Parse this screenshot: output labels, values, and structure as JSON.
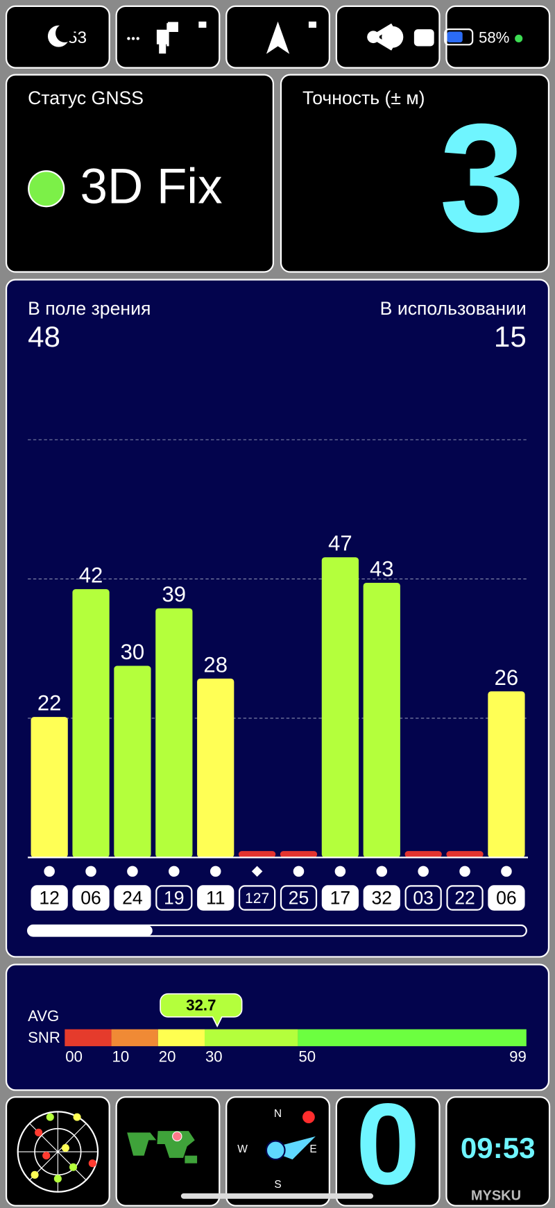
{
  "status_bar": {
    "time": ":53",
    "battery": "58%"
  },
  "gnss_status": {
    "label": "Статус GNSS",
    "value": "3D Fix"
  },
  "accuracy": {
    "label": "Точность (± м)",
    "value": "3"
  },
  "in_view": {
    "label": "В поле зрения",
    "value": "48"
  },
  "in_use": {
    "label": "В использовании",
    "value": "15"
  },
  "chart_data": {
    "type": "bar",
    "categories": [
      "12",
      "06",
      "24",
      "19",
      "11",
      "127",
      "25",
      "17",
      "32",
      "03",
      "22",
      "06"
    ],
    "values": [
      22,
      42,
      30,
      39,
      28,
      1,
      1,
      47,
      43,
      1,
      1,
      26
    ],
    "value_labels": [
      "22",
      "42",
      "30",
      "39",
      "28",
      null,
      null,
      "47",
      "43",
      null,
      null,
      "26"
    ],
    "colors": [
      "#ffff55",
      "#b4ff3c",
      "#b4ff3c",
      "#b4ff3c",
      "#ffff55",
      "#e3342f",
      "#e3342f",
      "#b4ff3c",
      "#b4ff3c",
      "#e3342f",
      "#e3342f",
      "#ffff55"
    ],
    "markers": [
      "circle",
      "circle",
      "circle",
      "circle",
      "circle",
      "diamond",
      "circle",
      "circle",
      "circle",
      "circle",
      "circle",
      "circle"
    ],
    "used": [
      true,
      true,
      true,
      false,
      true,
      false,
      false,
      true,
      true,
      false,
      false,
      true
    ],
    "ylim": [
      0,
      87.2
    ],
    "gridlines": [
      21.8,
      43.6,
      65.4
    ],
    "grid": true
  },
  "snr_gauge": {
    "label_top": "AVG",
    "label_bottom": "SNR",
    "value": 32.7,
    "xlim": [
      0,
      99
    ],
    "xticks": [
      {
        "value": 0,
        "label": "00"
      },
      10,
      20,
      30,
      50,
      99
    ],
    "band_colors": [
      "#e53b2c",
      "#f08a35",
      "#ffff50",
      "#b4ff3c",
      "#6cff40"
    ]
  },
  "compass": {
    "n": "N",
    "w": "W",
    "e": "E",
    "s": "S"
  },
  "satellites_used_tile": "0",
  "clock_tile": "09:53",
  "watermark": "MYSKU"
}
